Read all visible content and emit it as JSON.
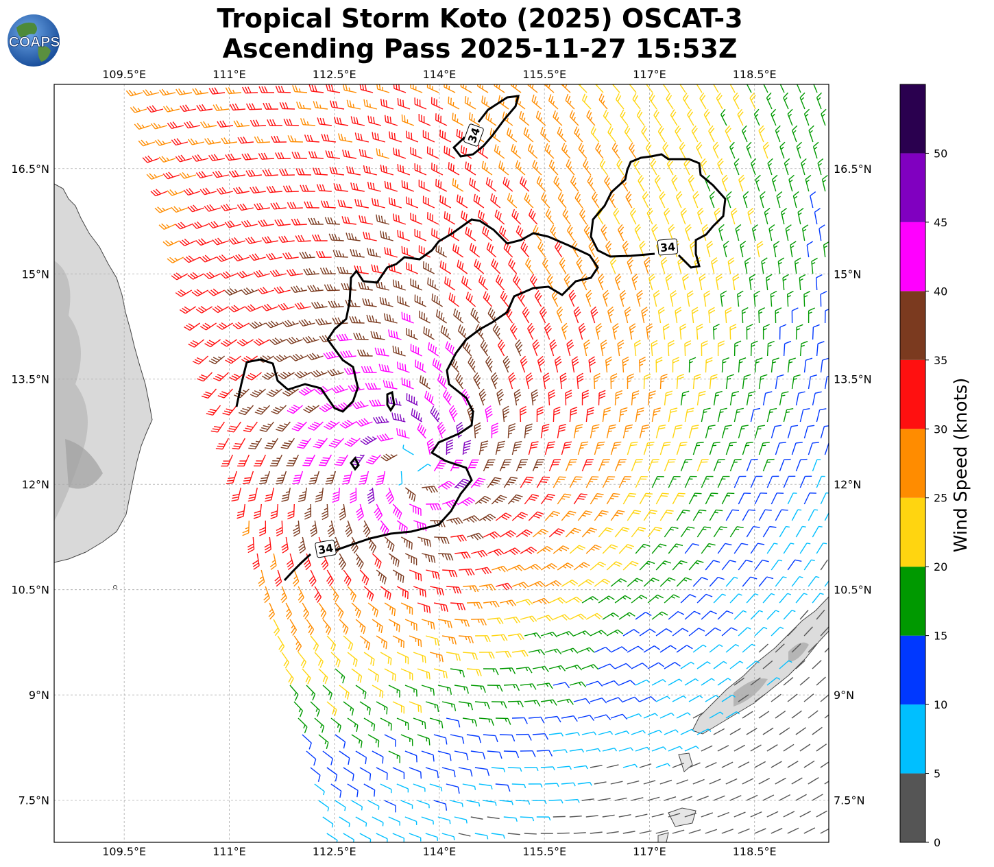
{
  "title": {
    "line1": "Tropical Storm Koto (2025) OSCAT-3",
    "line2": "Ascending Pass 2025-11-27 15:53Z"
  },
  "logo": {
    "text": "COAPS",
    "icon": "earth-globe-logo"
  },
  "map": {
    "lon_range": [
      108.5,
      119.56
    ],
    "lat_range": [
      6.9,
      17.7
    ],
    "lon_ticks": [
      "109.5°E",
      "111°E",
      "112.5°E",
      "114°E",
      "115.5°E",
      "117°E",
      "118.5°E"
    ],
    "lon_tick_values": [
      109.5,
      111,
      112.5,
      114,
      115.5,
      117,
      118.5
    ],
    "lat_ticks": [
      "16.5°N",
      "15°N",
      "13.5°N",
      "12°N",
      "10.5°N",
      "9°N",
      "7.5°N"
    ],
    "lat_tick_values": [
      16.5,
      15,
      13.5,
      12,
      10.5,
      9,
      7.5
    ],
    "gridlines": true,
    "storm_center": {
      "lon": 113.6,
      "lat": 12.25
    },
    "contour_label": "34",
    "contour_units": "knots"
  },
  "colorbar": {
    "label": "Wind Speed (knots)",
    "ticks": [
      "0",
      "5",
      "10",
      "15",
      "20",
      "25",
      "30",
      "35",
      "40",
      "45",
      "50"
    ],
    "bins": [
      {
        "min": 0,
        "max": 5,
        "color": "#555555"
      },
      {
        "min": 5,
        "max": 10,
        "color": "#00bfff"
      },
      {
        "min": 10,
        "max": 15,
        "color": "#0038ff"
      },
      {
        "min": 15,
        "max": 20,
        "color": "#009900"
      },
      {
        "min": 20,
        "max": 25,
        "color": "#ffd510"
      },
      {
        "min": 25,
        "max": 30,
        "color": "#ff8c00"
      },
      {
        "min": 30,
        "max": 35,
        "color": "#ff1010"
      },
      {
        "min": 35,
        "max": 40,
        "color": "#7b3a1f"
      },
      {
        "min": 40,
        "max": 45,
        "color": "#ff00ff"
      },
      {
        "min": 45,
        "max": 50,
        "color": "#8000c0"
      },
      {
        "min": 50,
        "max": 55,
        "color": "#2a004f"
      }
    ]
  }
}
